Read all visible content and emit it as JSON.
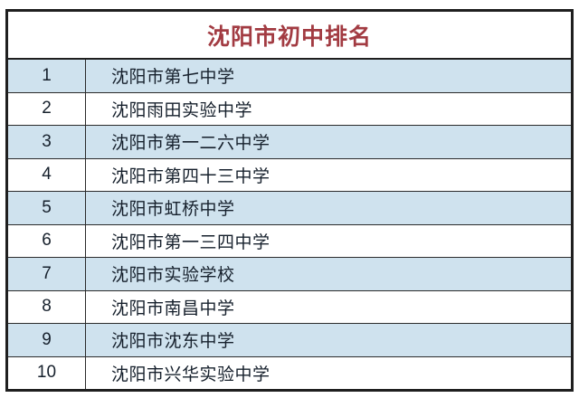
{
  "title": "沈阳市初中排名",
  "colors": {
    "page_bg": "#ffffff",
    "title_text": "#a23b42",
    "row_bg": "#ffffff",
    "row_alt_bg": "#cfe2ee",
    "border": "#1f1f1f",
    "cell_text": "#16202c"
  },
  "chart_data": {
    "type": "table",
    "title": "沈阳市初中排名",
    "rows": [
      {
        "rank": "1",
        "school": "沈阳市第七中学"
      },
      {
        "rank": "2",
        "school": "沈阳雨田实验中学"
      },
      {
        "rank": "3",
        "school": "沈阳市第一二六中学"
      },
      {
        "rank": "4",
        "school": "沈阳市第四十三中学"
      },
      {
        "rank": "5",
        "school": "沈阳市虹桥中学"
      },
      {
        "rank": "6",
        "school": "沈阳市第一三四中学"
      },
      {
        "rank": "7",
        "school": "沈阳市实验学校"
      },
      {
        "rank": "8",
        "school": "沈阳市南昌中学"
      },
      {
        "rank": "9",
        "school": "沈阳市沈东中学"
      },
      {
        "rank": "10",
        "school": "沈阳市兴华实验中学"
      }
    ]
  }
}
